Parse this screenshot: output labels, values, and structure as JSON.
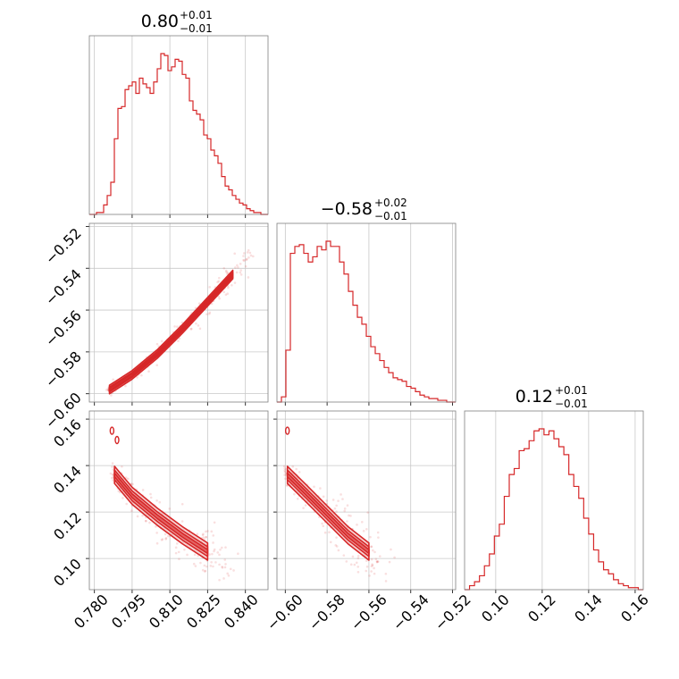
{
  "colors": {
    "accent": "#d62728",
    "fill_light": "#f2b8b8",
    "fill_mid": "#e98080",
    "grid": "#c8c8c8",
    "frame": "#808080"
  },
  "chart_data": [
    {
      "type": "histogram",
      "panel": "diag-0",
      "title": {
        "main": "0.80",
        "plus": "+0.01",
        "minus": "−0.01"
      },
      "xlim": [
        0.778,
        0.849
      ],
      "x_ticks": [
        0.78,
        0.795,
        0.81,
        0.825,
        0.84
      ],
      "y_rel": [
        0,
        0,
        0.01,
        0.01,
        0.05,
        0.1,
        0.17,
        0.4,
        0.56,
        0.57,
        0.66,
        0.68,
        0.7,
        0.64,
        0.72,
        0.69,
        0.67,
        0.64,
        0.7,
        0.77,
        0.85,
        0.84,
        0.76,
        0.78,
        0.82,
        0.81,
        0.74,
        0.72,
        0.6,
        0.55,
        0.53,
        0.5,
        0.42,
        0.4,
        0.34,
        0.31,
        0.27,
        0.2,
        0.15,
        0.13,
        0.1,
        0.08,
        0.06,
        0.05,
        0.03,
        0.02,
        0.01,
        0.01,
        0,
        0
      ]
    },
    {
      "type": "histogram",
      "panel": "diag-1",
      "title": {
        "main": "−0.58",
        "plus": "+0.02",
        "minus": "−0.01"
      },
      "xlim": [
        -0.604,
        -0.5185
      ],
      "x_ticks": [
        -0.6,
        -0.58,
        -0.56,
        -0.54,
        -0.52
      ],
      "y_rel": [
        0,
        0.03,
        0.3,
        0.86,
        0.9,
        0.91,
        0.86,
        0.81,
        0.84,
        0.9,
        0.88,
        0.93,
        0.9,
        0.9,
        0.81,
        0.74,
        0.64,
        0.56,
        0.49,
        0.45,
        0.38,
        0.32,
        0.28,
        0.24,
        0.2,
        0.17,
        0.14,
        0.13,
        0.12,
        0.09,
        0.08,
        0.06,
        0.04,
        0.03,
        0.02,
        0.02,
        0.01,
        0.01,
        0,
        0
      ]
    },
    {
      "type": "histogram",
      "panel": "diag-2",
      "title": {
        "main": "0.12",
        "plus": "+0.01",
        "minus": "−0.01"
      },
      "xlim": [
        0.0866,
        0.1635
      ],
      "x_ticks": [
        0.1,
        0.12,
        0.14,
        0.16
      ],
      "y_rel": [
        0,
        0.02,
        0.04,
        0.07,
        0.12,
        0.18,
        0.27,
        0.33,
        0.47,
        0.58,
        0.61,
        0.7,
        0.71,
        0.75,
        0.8,
        0.81,
        0.78,
        0.8,
        0.76,
        0.72,
        0.68,
        0.58,
        0.52,
        0.46,
        0.36,
        0.28,
        0.2,
        0.14,
        0.1,
        0.08,
        0.05,
        0.03,
        0.02,
        0.01,
        0.01,
        0
      ]
    },
    {
      "type": "scatter",
      "panel": "x1-vs-x0",
      "xlim": [
        0.778,
        0.849
      ],
      "ylim": [
        -0.604,
        -0.5185
      ],
      "y_ticks": [
        -0.6,
        -0.58,
        -0.56,
        -0.54,
        -0.52
      ],
      "relation": "linear, tight",
      "ridge_x": [
        0.786,
        0.795,
        0.805,
        0.815,
        0.825,
        0.835,
        0.845
      ],
      "ridge_y": [
        -0.598,
        -0.591,
        -0.581,
        -0.569,
        -0.556,
        -0.543,
        -0.53
      ]
    },
    {
      "type": "scatter",
      "panel": "x2-vs-x0",
      "xlim": [
        0.778,
        0.849
      ],
      "ylim": [
        0.0866,
        0.1635
      ],
      "y_ticks": [
        0.1,
        0.12,
        0.14,
        0.16
      ],
      "ridge_x": [
        0.788,
        0.795,
        0.805,
        0.815,
        0.825,
        0.832
      ],
      "ridge_y": [
        0.136,
        0.127,
        0.118,
        0.11,
        0.103,
        0.097
      ],
      "outlier_points": [
        {
          "x": 0.787,
          "y": 0.155
        },
        {
          "x": 0.789,
          "y": 0.151
        }
      ]
    },
    {
      "type": "scatter",
      "panel": "x2-vs-x1",
      "xlim": [
        -0.604,
        -0.5185
      ],
      "ylim": [
        0.0866,
        0.1635
      ],
      "ridge_x": [
        -0.599,
        -0.59,
        -0.58,
        -0.57,
        -0.56,
        -0.552
      ],
      "ridge_y": [
        0.136,
        0.128,
        0.119,
        0.11,
        0.103,
        0.098
      ],
      "outlier_points": [
        {
          "x": -0.599,
          "y": 0.155
        }
      ]
    }
  ],
  "axis_labels": {
    "x0": [
      "0.780",
      "0.795",
      "0.810",
      "0.825",
      "0.840"
    ],
    "x1": [
      "−0.60",
      "−0.58",
      "−0.56",
      "−0.54",
      "−0.52"
    ],
    "x2": [
      "0.10",
      "0.12",
      "0.14",
      "0.16"
    ],
    "y1": [
      "−0.60",
      "−0.58",
      "−0.56",
      "−0.54",
      "−0.52"
    ],
    "y2": [
      "0.10",
      "0.12",
      "0.14",
      "0.16"
    ]
  }
}
